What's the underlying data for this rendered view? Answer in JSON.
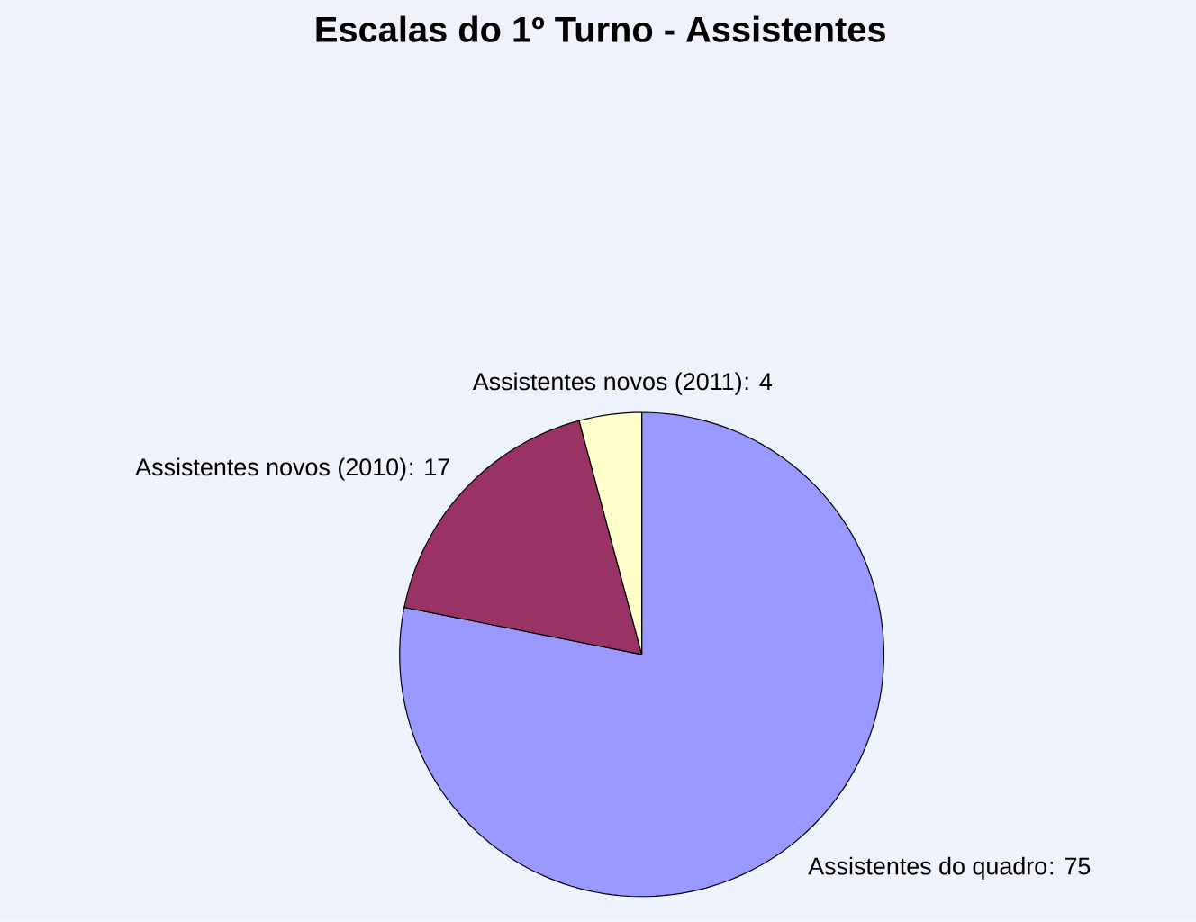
{
  "chart_data": {
    "type": "pie",
    "title": "Escalas do 1º Turno - Assistentes",
    "categories": [
      "Assistentes do quadro",
      "Assistentes novos (2010)",
      "Assistentes novos (2011)"
    ],
    "values": [
      75,
      17,
      4
    ],
    "value_labels": [
      ": 75",
      ": 17",
      ": 4"
    ],
    "colors": [
      "#9999ff",
      "#993366",
      "#ffffcc"
    ]
  }
}
